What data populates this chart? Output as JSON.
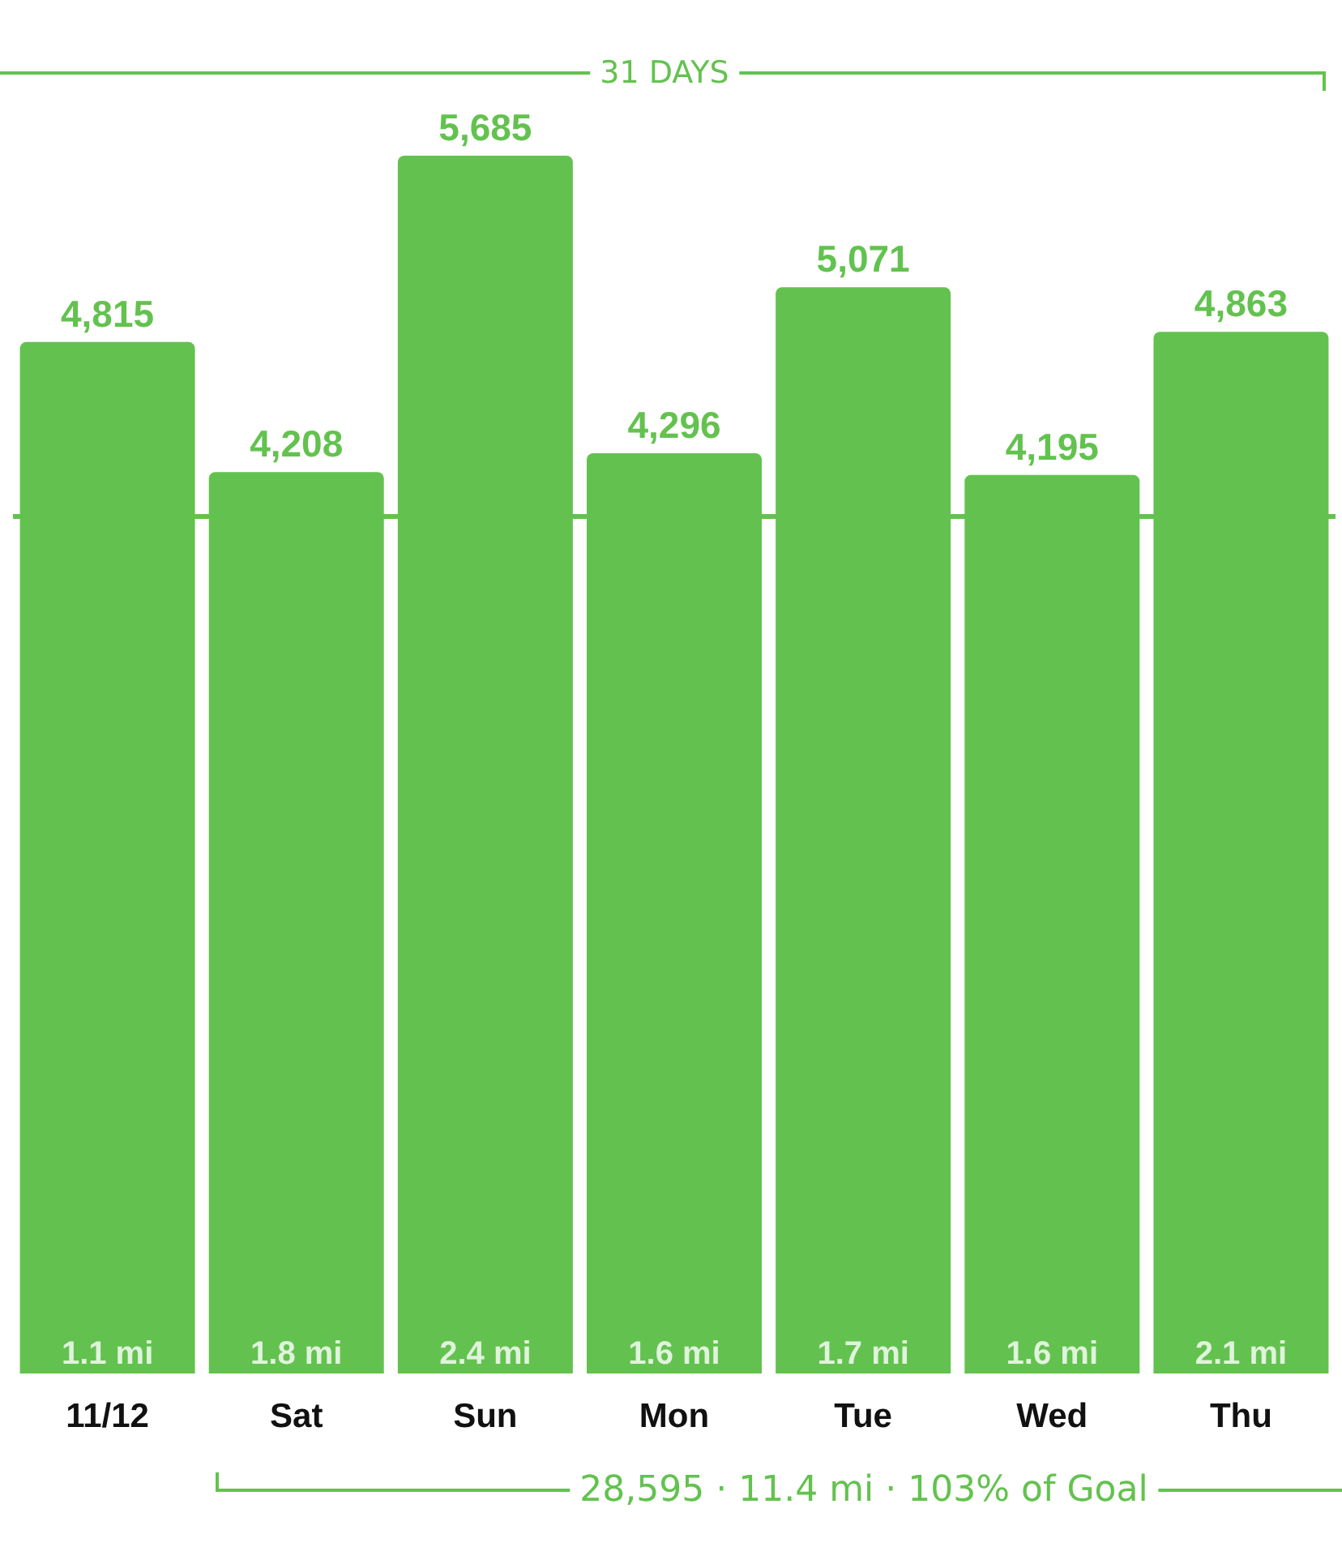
{
  "chart_data": {
    "type": "bar",
    "categories": [
      "11/12",
      "Sat",
      "Sun",
      "Mon",
      "Tue",
      "Wed",
      "Thu"
    ],
    "values": [
      4815,
      4208,
      5685,
      4296,
      5071,
      4195,
      4863
    ],
    "color": "#63c24f",
    "value_labels": [
      "4,815",
      "4,208",
      "5,685",
      "4,296",
      "5,071",
      "4,195",
      "4,863"
    ],
    "ref_lines": [
      {
        "axis": "y",
        "value": 4000,
        "label": null,
        "color": "#63c24f"
      }
    ],
    "annotations": [
      "31 DAYS",
      "28,595 · 11.4 mi · 103% of Goal",
      {
        "text": "1.1 mi",
        "x": "11/12",
        "y": 0
      },
      {
        "text": "1.8 mi",
        "x": "Sat",
        "y": 0
      },
      {
        "text": "2.4 mi",
        "x": "Sun",
        "y": 0
      },
      {
        "text": "1.6 mi",
        "x": "Mon",
        "y": 0
      },
      {
        "text": "1.7 mi",
        "x": "Tue",
        "y": 0
      },
      {
        "text": "1.6 mi",
        "x": "Wed",
        "y": 0
      },
      {
        "text": "2.1 mi",
        "x": "Thu",
        "y": 0
      }
    ]
  }
}
